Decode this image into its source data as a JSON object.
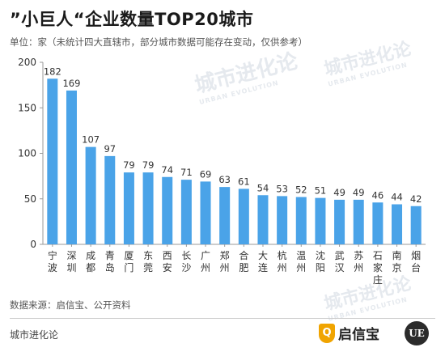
{
  "header": {
    "title": "”小巨人“企业数量TOP20城市",
    "subtitle": "单位：家（未统计四大直辖市，部分城市数据可能存在变动，仅供参考）"
  },
  "footer": {
    "source": "数据来源：启信宝、公开资料",
    "left_label": "城市进化论",
    "brand_name": "启信宝",
    "brand_badge": "UE"
  },
  "watermark": {
    "main": "城市进化论",
    "sub": "URBAN EVOLUTION"
  },
  "colors": {
    "bar": "#4aa3e8",
    "axis": "#999999",
    "text": "#333333"
  },
  "chart_data": {
    "type": "bar",
    "categories": [
      "宁波",
      "深圳",
      "成都",
      "青岛",
      "厦门",
      "东莞",
      "西安",
      "长沙",
      "广州",
      "郑州",
      "合肥",
      "大连",
      "杭州",
      "温州",
      "沈阳",
      "武汉",
      "苏州",
      "石家庄",
      "南京",
      "烟台"
    ],
    "values": [
      182,
      169,
      107,
      97,
      79,
      79,
      74,
      71,
      69,
      63,
      61,
      54,
      53,
      52,
      51,
      49,
      49,
      46,
      44,
      42
    ],
    "ylim": [
      0,
      200
    ],
    "yticks": [
      0,
      50,
      100,
      150,
      200
    ],
    "grid": false
  }
}
